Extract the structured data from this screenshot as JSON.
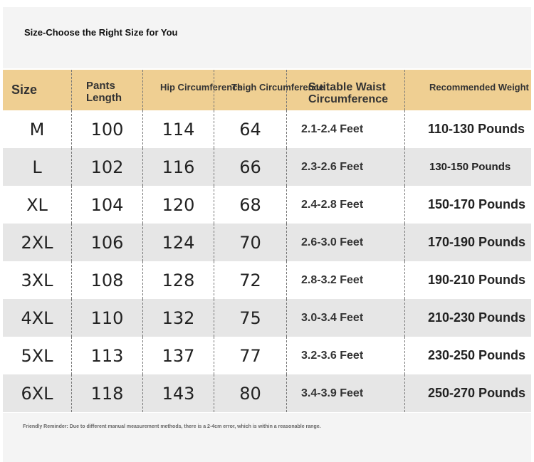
{
  "header": {
    "title": "Size-Choose the Right Size for You"
  },
  "table": {
    "headers": [
      "Size",
      "Pants Length",
      "Hip Circumference",
      "Thigh Circumference",
      "Suitable Waist Circumference",
      "Recommended Weight"
    ],
    "rows": [
      [
        "M",
        100,
        114,
        64,
        "2.1-2.4 Feet",
        "110-130 Pounds"
      ],
      [
        "L",
        102,
        116,
        66,
        "2.3-2.6 Feet",
        "130-150 Pounds"
      ],
      [
        "XL",
        104,
        120,
        68,
        "2.4-2.8 Feet",
        "150-170 Pounds"
      ],
      [
        "2XL",
        106,
        124,
        70,
        "2.6-3.0 Feet",
        "170-190 Pounds"
      ],
      [
        "3XL",
        108,
        128,
        72,
        "2.8-3.2 Feet",
        "190-210 Pounds"
      ],
      [
        "4XL",
        110,
        132,
        75,
        "3.0-3.4 Feet",
        "210-230 Pounds"
      ],
      [
        "5XL",
        113,
        137,
        77,
        "3.2-3.6 Feet",
        "230-250 Pounds"
      ],
      [
        "6XL",
        118,
        143,
        80,
        "3.4-3.9 Feet",
        "250-270 Pounds"
      ]
    ]
  },
  "footer": {
    "note": "Friendly Reminder: Due to different manual measurement methods, there is a 2-4cm error, which is within a reasonable range."
  }
}
